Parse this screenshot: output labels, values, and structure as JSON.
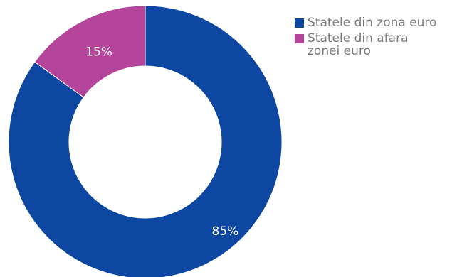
{
  "chart_data": {
    "type": "pie",
    "donut": true,
    "categories": [
      "Statele din zona euro",
      "Statele din afara zonei euro"
    ],
    "values": [
      85,
      15
    ],
    "value_labels": [
      "85%",
      "15%"
    ],
    "colors": [
      "#0d47a1",
      "#b5459a"
    ],
    "legend_position": "top-right"
  }
}
